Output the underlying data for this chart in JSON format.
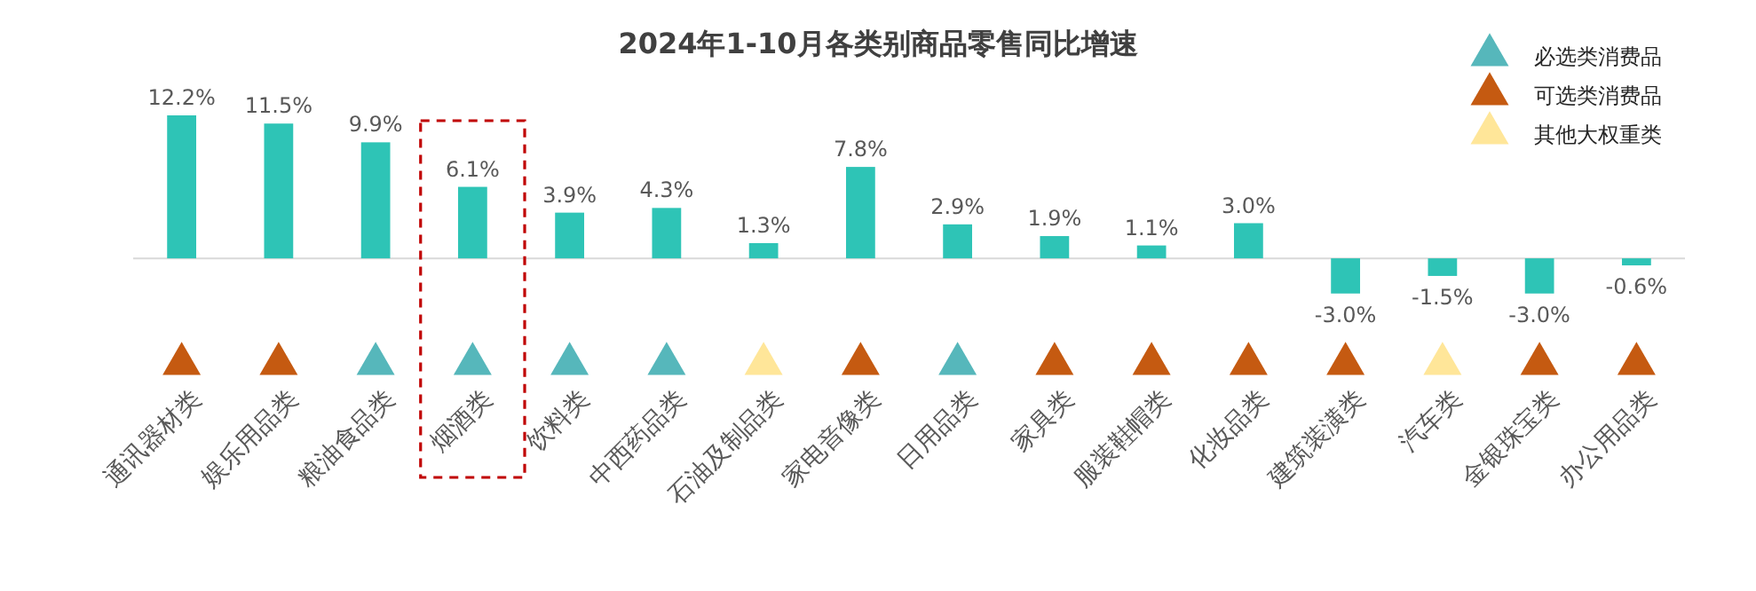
{
  "chart_data": {
    "type": "bar",
    "title": "2024年1-10月各类别商品零售同比增速",
    "categories": [
      "通讯器材类",
      "娱乐用品类",
      "粮油食品类",
      "烟酒类",
      "饮料类",
      "中西药品类",
      "石油及制品类",
      "家电音像类",
      "日用品类",
      "家具类",
      "服装鞋帽类",
      "化妆品类",
      "建筑装潢类",
      "汽车类",
      "金银珠宝类",
      "办公用品类"
    ],
    "tick_labels": "x",
    "legend": "top right",
    "marker": "triangle",
    "series": [
      {
        "color": "#2ec4b6",
        "values": [
          12.2,
          11.5,
          9.9,
          6.1,
          3.9,
          4.3,
          1.3,
          7.8,
          2.9,
          1.9,
          1.1,
          3.0,
          -3.0,
          -1.5,
          -3.0,
          -0.6
        ],
        "value_labels": [
          "12.2%",
          "11.5%",
          "9.9%",
          "6.1%",
          "3.9%",
          "4.3%",
          "1.3%",
          "7.8%",
          "2.9%",
          "1.9%",
          "1.1%",
          "3.0%",
          "-3.0%",
          "-1.5%",
          "-3.0%",
          "-0.6%"
        ]
      },
      {
        "type": "scatter",
        "name": "必选类消费品",
        "color": "#56b7bb",
        "values": [
          null,
          null,
          -9,
          -9,
          -9,
          -9,
          null,
          null,
          -9,
          null,
          null,
          null,
          null,
          null,
          null,
          null
        ]
      },
      {
        "type": "scatter",
        "name": "可选类消费品",
        "color": "#c55a11",
        "values": [
          -9,
          -9,
          null,
          null,
          null,
          null,
          null,
          -9,
          null,
          -9,
          -9,
          -9,
          -9,
          null,
          -9,
          -9
        ]
      },
      {
        "type": "scatter",
        "name": "其他大权重类",
        "color": "#ffe699",
        "values": [
          null,
          null,
          null,
          null,
          null,
          null,
          -9,
          null,
          null,
          null,
          null,
          null,
          null,
          -9,
          null,
          null
        ]
      }
    ]
  }
}
